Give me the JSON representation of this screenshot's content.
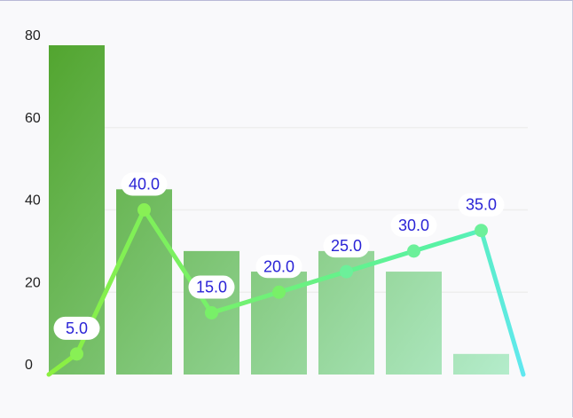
{
  "chart_data": {
    "type": "bar",
    "title": "",
    "xlabel": "",
    "ylabel": "",
    "ylim": [
      0,
      80
    ],
    "y_ticks": [
      "0",
      "20",
      "40",
      "60",
      "80"
    ],
    "grid": "horizontal",
    "categories": [
      "",
      "",
      "",
      "",
      "",
      "",
      ""
    ],
    "bar_series": {
      "values": [
        80,
        45,
        30,
        25,
        30,
        25,
        5
      ],
      "colors_gradient": [
        "#52a52f",
        "#b4eccb"
      ]
    },
    "line_series": {
      "type": "line",
      "x_positions": [
        -0.5,
        0,
        1,
        2,
        3,
        4,
        5,
        6,
        6.5
      ],
      "values": [
        0,
        5,
        40,
        15,
        20,
        25,
        30,
        35,
        0
      ],
      "data_labels": [
        "",
        "5.0",
        "40.0",
        "15.0",
        "20.0",
        "25.0",
        "30.0",
        "35.0",
        ""
      ],
      "color_gradient": [
        "#8cf040",
        "#56f2a8",
        "#60e8f0"
      ]
    }
  }
}
